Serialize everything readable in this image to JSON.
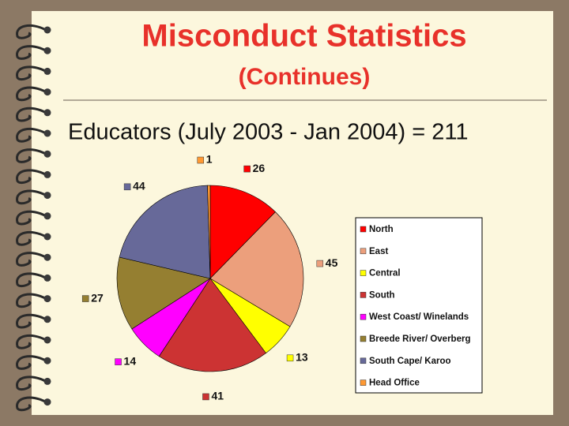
{
  "chart_data": {
    "type": "pie",
    "title": "Misconduct Statistics",
    "subtitle": "(Continues)",
    "annotation": "Educators (July 2003 - Jan 2004) = 211",
    "categories": [
      "North",
      "East",
      "Central",
      "South",
      "West Coast/ Winelands",
      "Breede River/ Overberg",
      "South Cape/ Karoo",
      "Head Office"
    ],
    "values": [
      26,
      45,
      13,
      41,
      14,
      27,
      44,
      1
    ],
    "colors": [
      "#ff0000",
      "#ec9f7c",
      "#ffff00",
      "#cc3333",
      "#ff00ff",
      "#957f31",
      "#676999",
      "#ff9933"
    ],
    "legend": "right"
  }
}
